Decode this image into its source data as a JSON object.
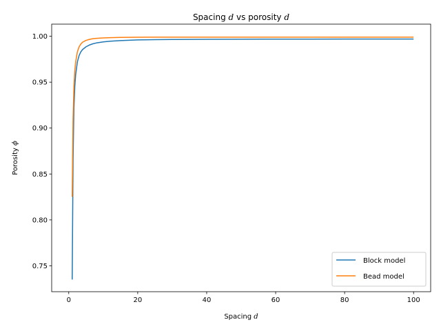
{
  "chart_data": {
    "type": "line",
    "title": "Spacing d vs porosity d",
    "title_parts": [
      "Spacing ",
      "d",
      " vs porosity ",
      "d"
    ],
    "xlabel_parts": [
      "Spacing ",
      "d"
    ],
    "ylabel_parts": [
      "Porosity ",
      "ϕ"
    ],
    "xlim": [
      -4.95,
      104.95
    ],
    "ylim": [
      0.7218,
      1.0132
    ],
    "xticks": [
      0,
      20,
      40,
      60,
      80,
      100
    ],
    "yticks": [
      0.75,
      0.8,
      0.85,
      0.9,
      0.95,
      1.0
    ],
    "xtick_labels": [
      "0",
      "20",
      "40",
      "60",
      "80",
      "100"
    ],
    "ytick_labels": [
      "0.75",
      "0.80",
      "0.85",
      "0.90",
      "0.95",
      "1.00"
    ],
    "grid": false,
    "legend_position": "lower-right",
    "x": [
      1,
      1.25,
      1.5,
      1.75,
      2,
      2.5,
      3,
      3.5,
      4,
      5,
      6,
      7,
      8,
      10,
      12,
      15,
      20,
      25,
      30,
      40,
      50,
      60,
      70,
      80,
      90,
      100
    ],
    "series": [
      {
        "name": "Block model",
        "color": "#1f77b4",
        "values": [
          0.735,
          0.865,
          0.922,
          0.945,
          0.958,
          0.972,
          0.979,
          0.983,
          0.9855,
          0.9885,
          0.9905,
          0.9918,
          0.9927,
          0.9939,
          0.9946,
          0.9953,
          0.996,
          0.9963,
          0.9965,
          0.9967,
          0.9968,
          0.9969,
          0.9969,
          0.997,
          0.997,
          0.997
        ]
      },
      {
        "name": "Bead model",
        "color": "#ff7f0e",
        "values": [
          0.825,
          0.91,
          0.945,
          0.962,
          0.972,
          0.983,
          0.9885,
          0.9915,
          0.9935,
          0.9955,
          0.9966,
          0.9973,
          0.9977,
          0.9982,
          0.9985,
          0.9987,
          0.9989,
          0.999,
          0.999,
          0.999,
          0.999,
          0.999,
          0.999,
          0.999,
          0.999,
          0.999
        ]
      }
    ]
  }
}
